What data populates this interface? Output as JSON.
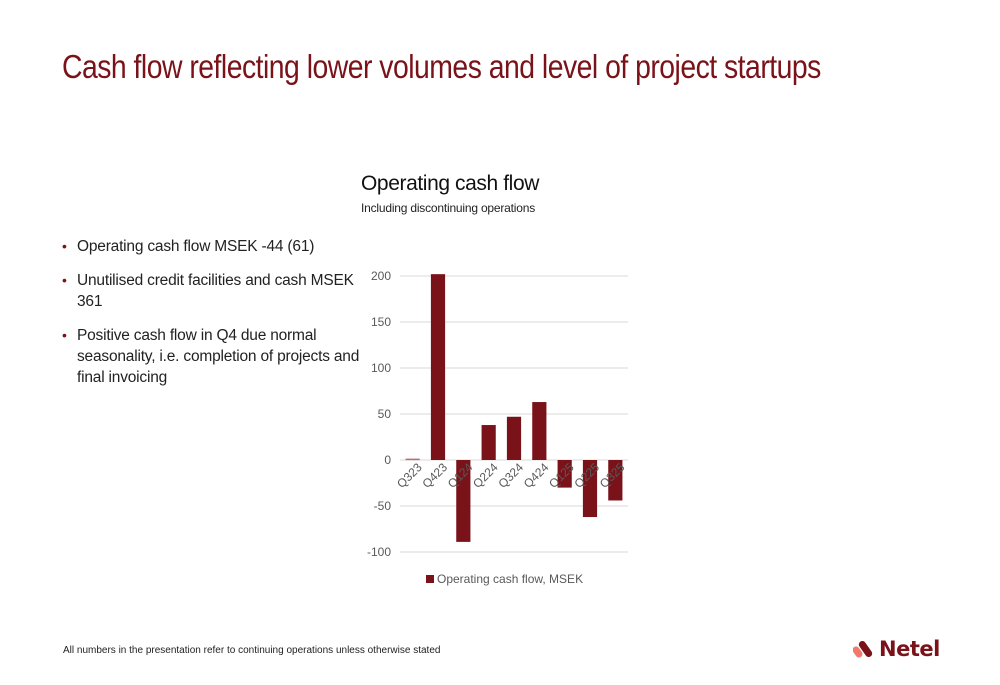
{
  "slide": {
    "title": "Cash flow reflecting lower volumes and level of project startups",
    "bullets": [
      "Operating cash flow MSEK -44 (61)",
      "Unutilised credit facilities and cash MSEK 361",
      "Positive cash flow in Q4 due normal seasonality, i.e. completion of projects and final invoicing"
    ],
    "footer": "All numbers in the presentation refer to continuing operations unless otherwise stated",
    "logo": {
      "text": "Netel",
      "icon": "netel-logo-icon"
    },
    "colors": {
      "brand": "#7a1319",
      "logo_light": "#f07a6e"
    }
  },
  "chart_data": {
    "type": "bar",
    "title": "Operating cash flow",
    "subtitle": "Including discontinuing operations",
    "categories": [
      "Q323",
      "Q423",
      "Q124",
      "Q224",
      "Q324",
      "Q424",
      "Q125",
      "Q225",
      "Q325"
    ],
    "series": [
      {
        "name": "Operating cash flow, MSEK",
        "color": "#7a1319",
        "values": [
          1.5,
          202,
          -89,
          38,
          47,
          63,
          -30,
          -62,
          -44
        ]
      }
    ],
    "xlabel": "",
    "ylabel": "",
    "ylim": [
      -100,
      200
    ],
    "yticks": [
      200,
      150,
      100,
      50,
      0,
      -50,
      -100
    ],
    "grid": true,
    "legend": "bottom"
  }
}
